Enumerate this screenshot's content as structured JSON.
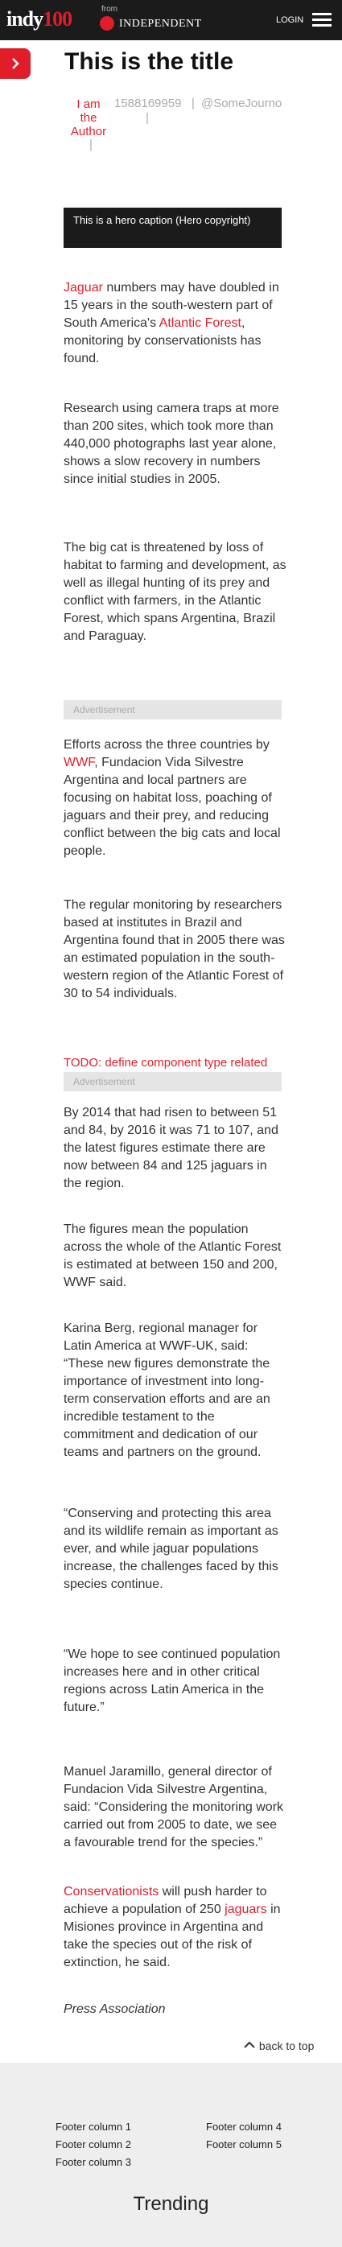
{
  "header": {
    "logo_main": "indy",
    "logo_num": "100",
    "from_label": "from",
    "publisher": "INDEPENDENT",
    "login": "LOGIN"
  },
  "article": {
    "title": "This is the title",
    "author_line1": "I am",
    "author_line2": "the",
    "author_line3": "Author",
    "author_sep": "|",
    "timestamp": "1588169959",
    "handle": "@SomeJourno",
    "hero_caption": "This is a hero caption (Hero copyright)",
    "p1_link1": "Jaguar",
    "p1_text1": " numbers may have doubled in 15 years in the south-western part of South America's ",
    "p1_link2": "Atlantic Forest",
    "p1_text2": ", monitoring by conservationists has found.",
    "p2": "Research using camera traps at more than 200 sites, which took more than 440,000 photographs last year alone, shows a slow recovery in numbers since initial studies in 2005.",
    "p3": "The big cat is threatened by loss of habitat to farming and development, as well as illegal hunting of its prey and conflict with farmers, in the Atlantic Forest, which spans Argentina, Brazil and Paraguay.",
    "ad_label": "Advertisement",
    "p4_text1": "Efforts across the three countries by ",
    "p4_link": "WWF",
    "p4_text2": ", Fundacion Vida Silvestre Argentina and local partners are focusing on habitat loss, poaching of jaguars and their prey, and reducing conflict between the big cats and local people.",
    "p5": "The regular monitoring by researchers based at institutes in Brazil and Argentina found that in 2005 there was an estimated population in the south-western region of the Atlantic Forest of 30 to 54 individuals.",
    "todo": "TODO: define component type related",
    "p6": "By 2014 that had risen to between 51 and 84, by 2016 it was 71 to 107, and the latest figures estimate there are now between 84 and 125 jaguars in the region.",
    "p7": "The figures mean the population across the whole of the Atlantic Forest is estimated at between 150 and 200, WWF said.",
    "p8": "Karina Berg, regional manager for Latin America at WWF-UK, said: “These new figures demonstrate the importance of investment into long-term conservation efforts and are an incredible testament to the commitment and dedication of our teams and partners on the ground.",
    "p9": "“Conserving and protecting this area and its wildlife remain as important as ever, and while jaguar populations increase, the challenges faced by this species continue.",
    "p10": "“We hope to see continued population increases here and in other critical regions across Latin America in the future.”",
    "p11": "Manuel Jaramillo, general director of Fundacion Vida Silvestre Argentina, said: “Considering the monitoring work carried out from 2005 to date, we see a favourable trend for the species.”",
    "p12_link1": "Conservationists",
    "p12_text1": " will push harder to achieve a population of 250 ",
    "p12_link2": "jaguars",
    "p12_text2": " in Misiones province in Argentina and take the species out of the risk of extinction, he said.",
    "credit": "Press Association"
  },
  "back_to_top": "back to top",
  "footer": {
    "col1": "Footer column 1",
    "col2": "Footer column 2",
    "col3": "Footer column 3",
    "col4": "Footer column 4",
    "col5": "Footer column 5"
  },
  "trending": "Trending",
  "colors": {
    "accent": "#e11d2a",
    "dark": "#1b1b1b",
    "footer_bg": "#eeeeee"
  }
}
